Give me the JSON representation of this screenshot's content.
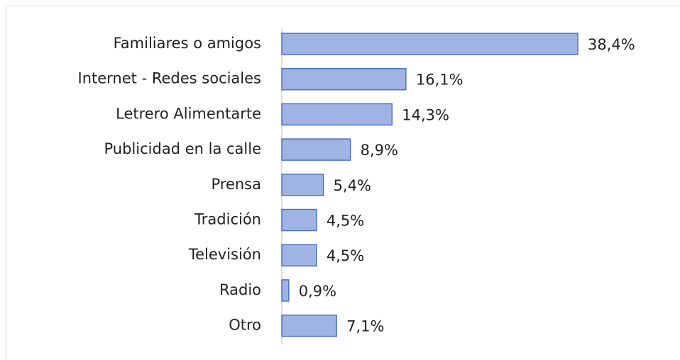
{
  "chart_data": {
    "type": "bar",
    "orientation": "horizontal",
    "categories": [
      "Familiares o amigos",
      "Internet - Redes sociales",
      "Letrero Alimentarte",
      "Publicidad en la calle",
      "Prensa",
      "Tradición",
      "Televisión",
      "Radio",
      "Otro"
    ],
    "values": [
      38.4,
      16.1,
      14.3,
      8.9,
      5.4,
      4.5,
      4.5,
      0.9,
      7.1
    ],
    "value_labels": [
      "38,4%",
      "16,1%",
      "14,3%",
      "8,9%",
      "5,4%",
      "4,5%",
      "4,5%",
      "0,9%",
      "7,1%"
    ],
    "color": "#9fb4e3"
  }
}
